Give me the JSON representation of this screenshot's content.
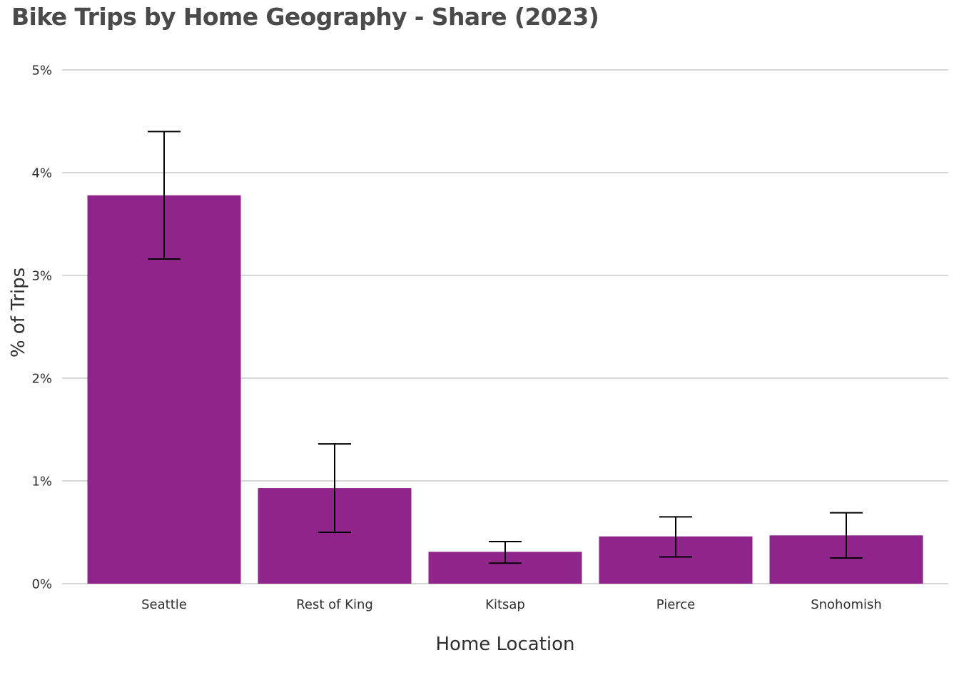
{
  "chart_data": {
    "type": "bar",
    "title": "Bike Trips by Home Geography - Share (2023)",
    "xlabel": "Home Location",
    "ylabel": "% of Trips",
    "categories": [
      "Seattle",
      "Rest of King",
      "Kitsap",
      "Pierce",
      "Snohomish"
    ],
    "values": [
      3.78,
      0.93,
      0.31,
      0.46,
      0.47
    ],
    "error_low": [
      3.16,
      0.5,
      0.2,
      0.26,
      0.25
    ],
    "error_high": [
      4.4,
      1.36,
      0.41,
      0.65,
      0.69
    ],
    "ylim": [
      0,
      5
    ],
    "yticks": [
      0,
      1,
      2,
      3,
      4,
      5
    ],
    "ytick_labels": [
      "0%",
      "1%",
      "2%",
      "3%",
      "4%",
      "5%"
    ],
    "grid": true,
    "legend": "none",
    "colors": {
      "bar": "#8f258b",
      "error_bar": "#000000",
      "grid": "#c8c8c8",
      "title": "#4a4a4a",
      "text": "#2f2f2f"
    }
  }
}
